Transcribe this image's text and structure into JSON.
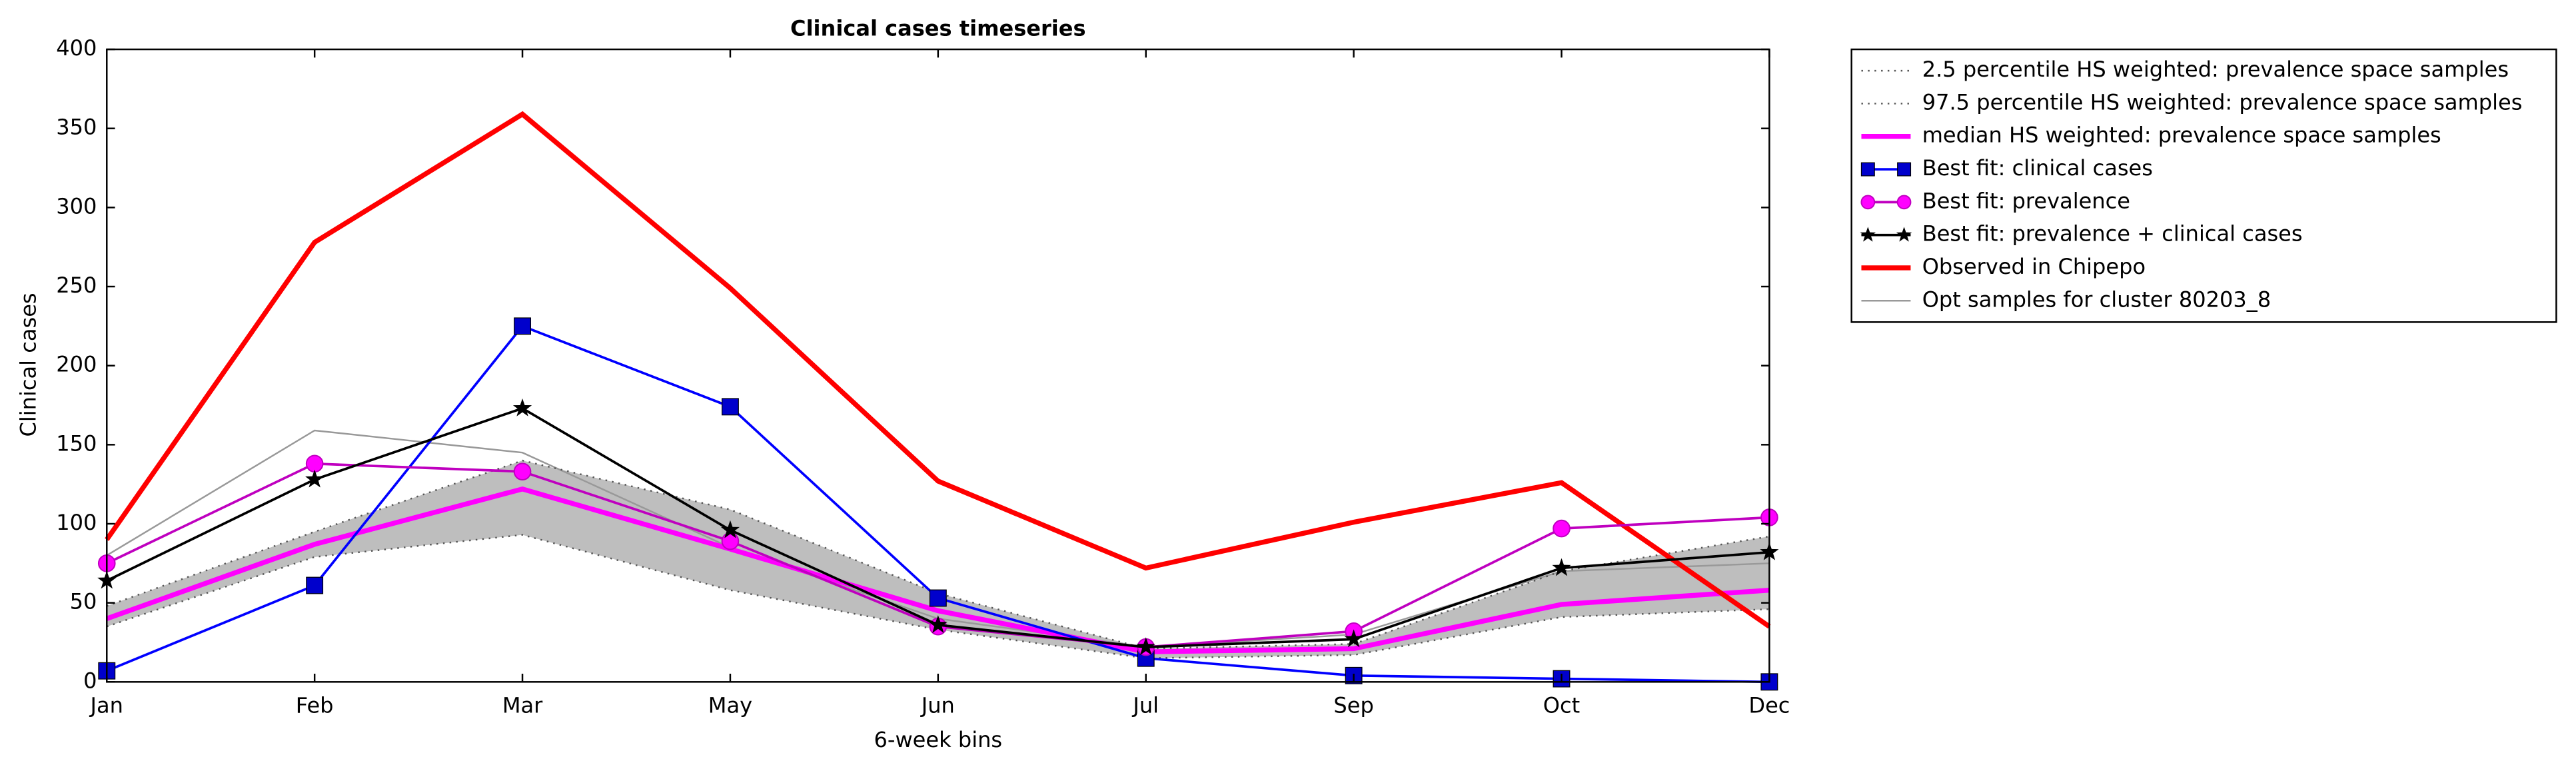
{
  "chart_data": {
    "type": "line",
    "title": "Clinical cases timeseries",
    "xlabel": "6-week bins",
    "ylabel": "Clinical cases",
    "categories": [
      "Jan",
      "Feb",
      "Mar",
      "May",
      "Jun",
      "Jul",
      "Sep",
      "Oct",
      "Dec"
    ],
    "ylim": [
      0,
      400
    ],
    "yticks": [
      0,
      50,
      100,
      150,
      200,
      250,
      300,
      350,
      400
    ],
    "fill_between_color": "#bebebe",
    "legend": "outside-upper-right",
    "series": [
      {
        "name": "2.5 percentile HS weighted: prevalence space samples",
        "color": "#555555",
        "dash": "dotted",
        "linewidth": 1,
        "values": [
          35,
          79,
          93,
          58,
          33,
          15,
          17,
          41,
          46
        ]
      },
      {
        "name": "97.5 percentile HS weighted: prevalence space samples",
        "color": "#555555",
        "dash": "dotted",
        "linewidth": 1,
        "values": [
          48,
          95,
          140,
          109,
          56,
          21,
          24,
          70,
          92
        ]
      },
      {
        "name": "median HS weighted: prevalence space samples",
        "color": "#ff00ff",
        "linewidth": 3,
        "values": [
          40,
          87,
          122,
          84,
          45,
          19,
          21,
          49,
          58
        ]
      },
      {
        "name": "Best fit: clinical cases",
        "color": "#0000ff",
        "marker": "square",
        "marker_color": "#0000cc",
        "linewidth": 1.5,
        "values": [
          7,
          61,
          225,
          174,
          53,
          15,
          4,
          2,
          0
        ]
      },
      {
        "name": "Best fit: prevalence",
        "color": "#bf00bf",
        "marker": "circle",
        "marker_color": "#ff00ff",
        "linewidth": 1.5,
        "values": [
          75,
          138,
          133,
          89,
          35,
          22,
          32,
          97,
          104
        ]
      },
      {
        "name": "Best fit: prevalence + clinical cases",
        "color": "#000000",
        "marker": "star",
        "marker_color": "#000000",
        "linewidth": 1.5,
        "values": [
          64,
          128,
          173,
          96,
          36,
          22,
          27,
          72,
          82
        ]
      },
      {
        "name": "Observed in Chipepo",
        "color": "#ff0000",
        "linewidth": 3,
        "values": [
          90,
          278,
          359,
          249,
          127,
          72,
          101,
          126,
          35
        ]
      },
      {
        "name": "Opt samples for cluster 80203_8",
        "color": "#999999",
        "linewidth": 1,
        "values": [
          80,
          159,
          145,
          85,
          40,
          22,
          30,
          70,
          75
        ]
      }
    ]
  }
}
